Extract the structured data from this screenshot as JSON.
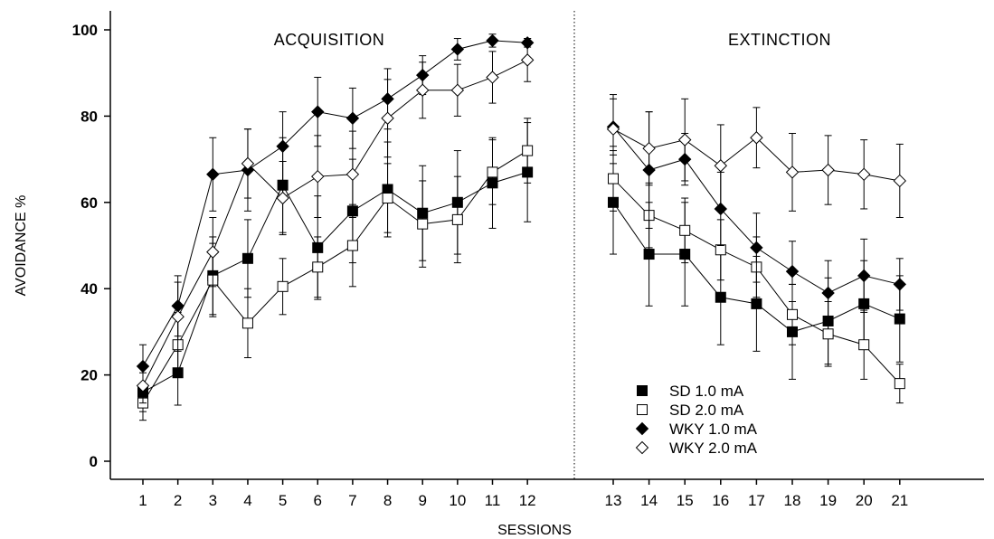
{
  "chart_data": {
    "type": "line",
    "title": "",
    "xlabel": "SESSIONS",
    "ylabel": "AVOIDANCE %",
    "ylim": [
      0,
      100
    ],
    "yticks": [
      0,
      20,
      40,
      60,
      80,
      100
    ],
    "xticks": [
      1,
      2,
      3,
      4,
      5,
      6,
      7,
      8,
      9,
      10,
      11,
      12,
      13,
      14,
      15,
      16,
      17,
      18,
      19,
      20,
      21
    ],
    "phases": [
      {
        "label": "ACQUISITION",
        "sessions": [
          1,
          12
        ]
      },
      {
        "label": "EXTINCTION",
        "sessions": [
          13,
          21
        ]
      }
    ],
    "legend_position": "bottom-right",
    "series": [
      {
        "name": "SD 1.0 mA",
        "marker": "square-filled",
        "acquisition": {
          "x": [
            1,
            2,
            3,
            4,
            5,
            6,
            7,
            8,
            9,
            10,
            11,
            12
          ],
          "y": [
            16,
            20.5,
            43,
            47,
            64,
            49.5,
            58,
            63,
            57.5,
            60,
            64.5,
            67
          ],
          "err": [
            4.5,
            7.5,
            9,
            9,
            11,
            12,
            12,
            11,
            11,
            12,
            10.5,
            11.5
          ]
        },
        "extinction": {
          "x": [
            13,
            14,
            15,
            16,
            17,
            18,
            19,
            20,
            21
          ],
          "y": [
            60,
            48,
            48,
            38,
            36.5,
            30,
            32.5,
            36.5,
            33
          ],
          "err": [
            12,
            12,
            12,
            11,
            11,
            11,
            10,
            10,
            10
          ]
        }
      },
      {
        "name": "SD 2.0 mA",
        "marker": "square-open",
        "acquisition": {
          "x": [
            1,
            2,
            3,
            4,
            5,
            6,
            7,
            8,
            9,
            10,
            11,
            12
          ],
          "y": [
            13.5,
            27,
            42,
            32,
            40.5,
            45,
            50,
            61,
            55,
            56,
            67,
            72
          ],
          "err": [
            4,
            7.5,
            8.5,
            8,
            6.5,
            7,
            9.5,
            8,
            10,
            10,
            7.5,
            7.5
          ]
        },
        "extinction": {
          "x": [
            13,
            14,
            15,
            16,
            17,
            18,
            19,
            20,
            21
          ],
          "y": [
            65.5,
            57,
            53.5,
            49,
            45,
            34,
            29.5,
            27,
            18
          ],
          "err": [
            7.5,
            7.5,
            7.5,
            7,
            7,
            7,
            7.5,
            8,
            4.5
          ]
        }
      },
      {
        "name": "WKY 1.0 mA",
        "marker": "diamond-filled",
        "acquisition": {
          "x": [
            1,
            2,
            3,
            4,
            5,
            6,
            7,
            8,
            9,
            10,
            11,
            12
          ],
          "y": [
            22,
            36,
            66.5,
            67.5,
            73,
            81,
            79.5,
            84,
            89.5,
            95.5,
            97.5,
            97
          ],
          "err": [
            5,
            7,
            8.5,
            9.5,
            8,
            8,
            7,
            7,
            4.5,
            2.5,
            1.5,
            1
          ]
        },
        "extinction": {
          "x": [
            13,
            14,
            15,
            16,
            17,
            18,
            19,
            20,
            21
          ],
          "y": [
            77.5,
            67.5,
            70,
            58.5,
            49.5,
            44,
            39,
            43,
            41
          ],
          "err": [
            6.5,
            13.5,
            6,
            8.5,
            8,
            7,
            7.5,
            8.5,
            6
          ]
        }
      },
      {
        "name": "WKY 2.0 mA",
        "marker": "diamond-open",
        "acquisition": {
          "x": [
            1,
            2,
            3,
            4,
            5,
            6,
            7,
            8,
            9,
            10,
            11,
            12
          ],
          "y": [
            17.5,
            33.5,
            48.5,
            69,
            61,
            66,
            66.5,
            79.5,
            86,
            86,
            89,
            93
          ],
          "err": [
            4,
            8,
            8,
            8,
            8.5,
            9.5,
            10,
            9,
            6.5,
            6,
            6,
            5
          ]
        },
        "extinction": {
          "x": [
            13,
            14,
            15,
            16,
            17,
            18,
            19,
            20,
            21
          ],
          "y": [
            77,
            72.5,
            74.5,
            68.5,
            75,
            67,
            67.5,
            66.5,
            65
          ],
          "err": [
            8,
            8.5,
            9.5,
            9.5,
            7,
            9,
            8,
            8,
            8.5
          ]
        }
      }
    ]
  }
}
